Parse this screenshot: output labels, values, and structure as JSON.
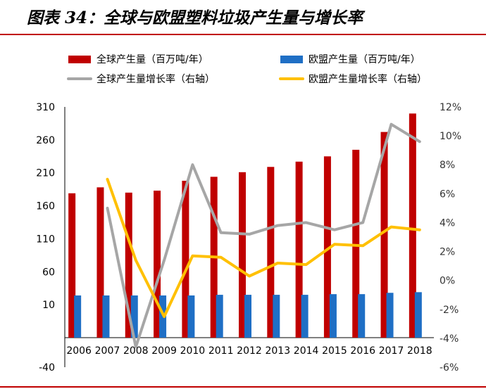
{
  "title": "图表 34：全球与欧盟塑料垃圾产生量与增长率",
  "chart_data": {
    "type": "bar+line",
    "categories": [
      "2006",
      "2007",
      "2008",
      "2009",
      "2010",
      "2011",
      "2012",
      "2013",
      "2014",
      "2015",
      "2016",
      "2017",
      "2018"
    ],
    "bar_series": [
      {
        "name": "全球产生量（百万吨/年）",
        "color": "#c00000",
        "values": [
          179,
          188,
          180,
          183,
          198,
          204,
          211,
          219,
          227,
          235,
          245,
          272,
          300
        ]
      },
      {
        "name": "欧盟产生量（百万吨/年）",
        "color": "#1f6fc5",
        "values": [
          24,
          24,
          24,
          24,
          24,
          25,
          25,
          25,
          25,
          26,
          26,
          28,
          29
        ]
      }
    ],
    "line_series": [
      {
        "name": "全球产生量增长率（右轴）",
        "color": "#a6a6a6",
        "values": [
          null,
          5.0,
          -4.6,
          1.4,
          8.0,
          3.3,
          3.2,
          3.8,
          4.0,
          3.5,
          4.0,
          10.8,
          9.6
        ]
      },
      {
        "name": "欧盟产生量增长率（右轴）",
        "color": "#ffc000",
        "values": [
          null,
          7.0,
          1.4,
          -2.5,
          1.7,
          1.6,
          0.3,
          1.2,
          1.1,
          2.5,
          2.4,
          3.7,
          3.5
        ]
      }
    ],
    "y_left": {
      "min": -40,
      "max": 310,
      "ticks": [
        -40,
        10,
        60,
        110,
        160,
        210,
        260,
        310
      ]
    },
    "y_right": {
      "min": -6,
      "max": 12,
      "ticks": [
        "-6%",
        "-4%",
        "-2%",
        "0%",
        "2%",
        "4%",
        "6%",
        "8%",
        "10%",
        "12%"
      ]
    },
    "legend_position": "top"
  }
}
